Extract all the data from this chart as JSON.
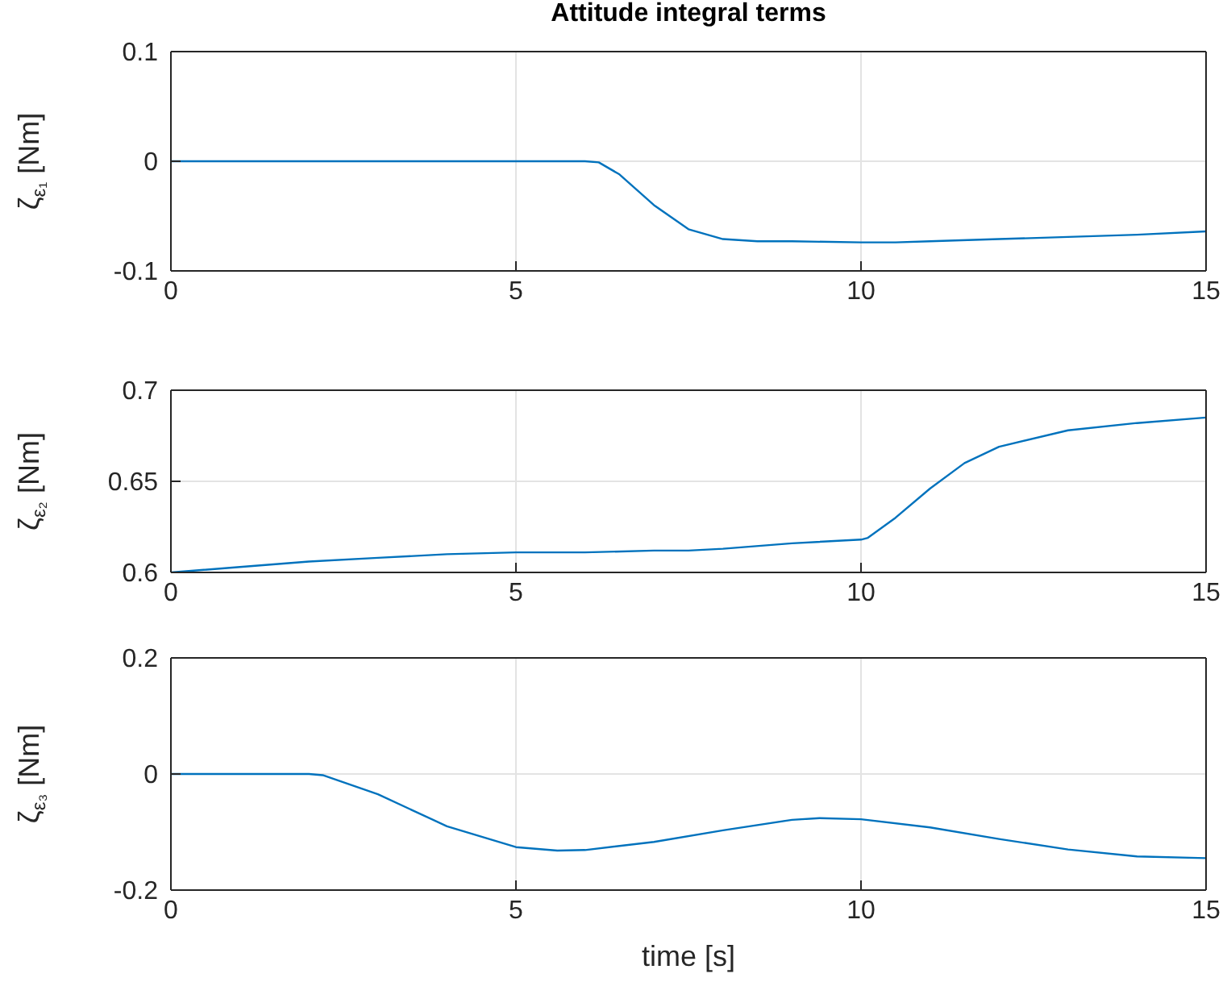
{
  "chart_data": [
    {
      "type": "line",
      "title": "Attitude integral terms",
      "ylabel": "ζ$_{ε₁}$ [Nm]",
      "xlim": [
        0,
        15
      ],
      "xticks": [
        0,
        5,
        10,
        15
      ],
      "ylim": [
        -0.1,
        0.1
      ],
      "yticks": [
        -0.1,
        0,
        0.1
      ],
      "grid": true,
      "marker": "none",
      "line_style": "solid",
      "x": [
        0,
        6,
        6.2,
        6.5,
        7,
        7.5,
        8,
        8.5,
        9,
        10,
        10.5,
        11,
        12,
        13,
        14,
        15
      ],
      "series": [
        {
          "color": "#0072bd",
          "values": [
            0,
            0,
            -0.001,
            -0.012,
            -0.04,
            -0.062,
            -0.071,
            -0.073,
            -0.073,
            -0.074,
            -0.074,
            -0.073,
            -0.071,
            -0.069,
            -0.067,
            -0.064
          ]
        }
      ]
    },
    {
      "type": "line",
      "ylabel": "ζ$_{ε₂}$ [Nm]",
      "xlim": [
        0,
        15
      ],
      "xticks": [
        0,
        5,
        10,
        15
      ],
      "ylim": [
        0.6,
        0.7
      ],
      "yticks": [
        0.6,
        0.65,
        0.7
      ],
      "grid": true,
      "marker": "none",
      "line_style": "solid",
      "x": [
        0,
        1,
        2,
        3,
        4,
        5,
        6,
        7,
        7.5,
        8,
        9,
        10,
        10.1,
        10.5,
        11,
        11.5,
        12,
        13,
        14,
        15
      ],
      "series": [
        {
          "color": "#0072bd",
          "values": [
            0.6,
            0.603,
            0.606,
            0.608,
            0.61,
            0.611,
            0.611,
            0.612,
            0.612,
            0.613,
            0.616,
            0.618,
            0.619,
            0.63,
            0.646,
            0.66,
            0.669,
            0.678,
            0.682,
            0.685
          ]
        }
      ]
    },
    {
      "type": "line",
      "xlabel": "time [s]",
      "ylabel": "ζ$_{ε₃}$ [Nm]",
      "xlim": [
        0,
        15
      ],
      "xticks": [
        0,
        5,
        10,
        15
      ],
      "ylim": [
        -0.2,
        0.2
      ],
      "yticks": [
        -0.2,
        0,
        0.2
      ],
      "grid": true,
      "marker": "none",
      "line_style": "solid",
      "x": [
        0,
        2,
        2.2,
        3,
        4,
        5,
        5.6,
        6,
        7,
        8,
        9,
        9.4,
        10,
        11,
        12,
        13,
        14,
        15
      ],
      "series": [
        {
          "color": "#0072bd",
          "values": [
            0,
            0,
            -0.002,
            -0.035,
            -0.09,
            -0.126,
            -0.132,
            -0.131,
            -0.117,
            -0.097,
            -0.079,
            -0.076,
            -0.078,
            -0.092,
            -0.112,
            -0.13,
            -0.142,
            -0.145
          ]
        }
      ]
    }
  ]
}
